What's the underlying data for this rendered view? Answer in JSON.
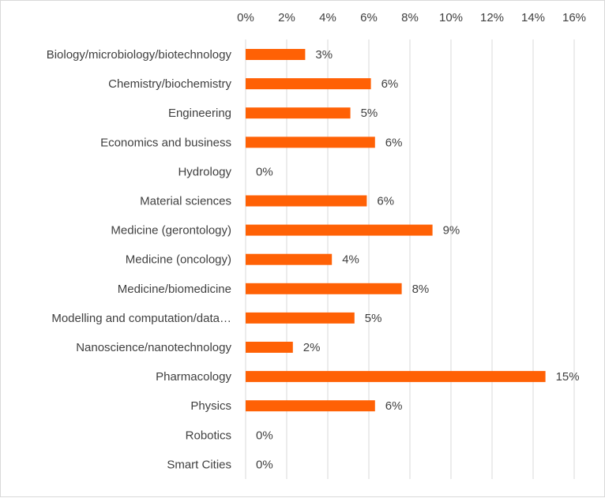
{
  "chart_data": {
    "type": "bar",
    "orientation": "horizontal",
    "categories": [
      "Biology/microbiology/biotechnology",
      "Chemistry/biochemistry",
      "Engineering",
      "Economics and business",
      "Hydrology",
      "Material sciences",
      "Medicine (gerontology)",
      "Medicine (oncology)",
      "Medicine/biomedicine",
      "Modelling and computation/data…",
      "Nanoscience/nanotechnology",
      "Pharmacology",
      "Physics",
      "Robotics",
      "Smart Cities"
    ],
    "values": [
      2.9,
      6.1,
      5.1,
      6.3,
      0,
      5.9,
      9.1,
      4.2,
      7.6,
      5.3,
      2.3,
      14.6,
      6.3,
      0,
      0
    ],
    "data_labels": [
      "3%",
      "6%",
      "5%",
      "6%",
      "0%",
      "6%",
      "9%",
      "4%",
      "8%",
      "5%",
      "2%",
      "15%",
      "6%",
      "0%",
      "0%"
    ],
    "x_ticks": [
      "0%",
      "2%",
      "4%",
      "6%",
      "8%",
      "10%",
      "12%",
      "14%",
      "16%"
    ],
    "xlim": [
      0,
      16
    ],
    "x_axis_position": "top",
    "grid": "vertical",
    "bar_color": "#ff6105",
    "title": "",
    "xlabel": "",
    "ylabel": ""
  }
}
